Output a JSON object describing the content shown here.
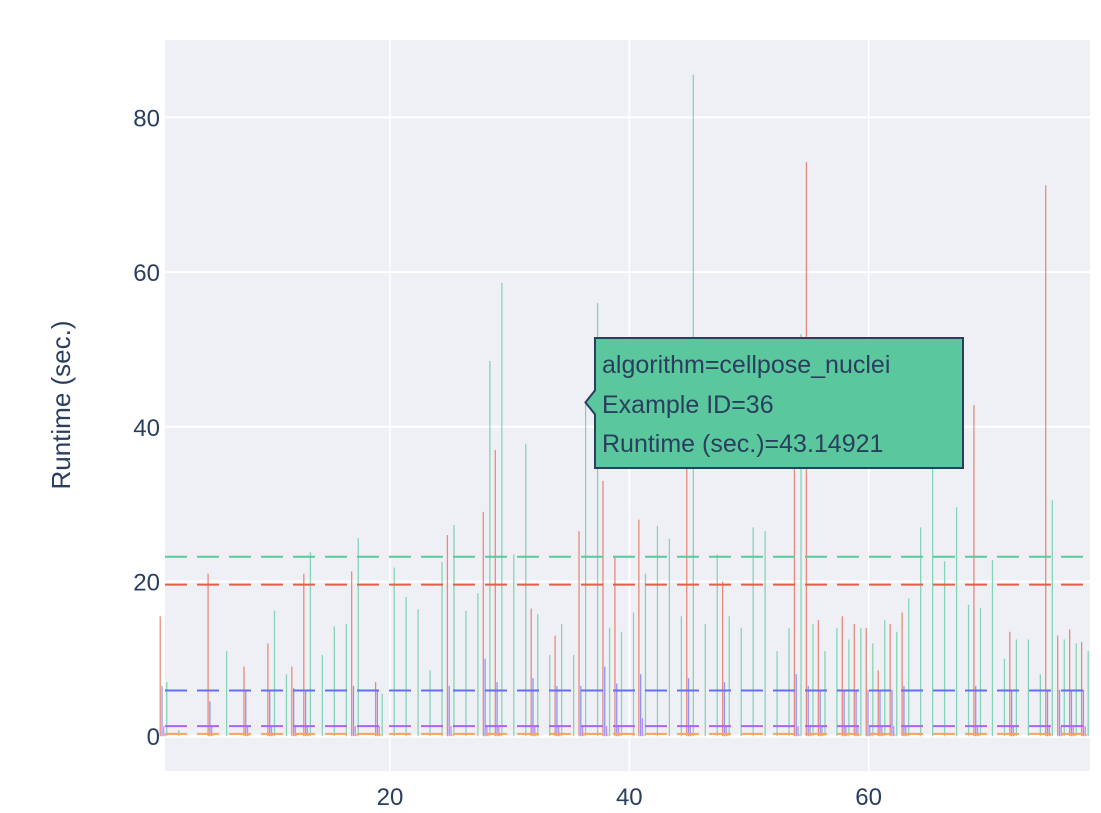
{
  "chart_data": {
    "type": "bar",
    "title": "",
    "xlabel": "",
    "ylabel": "Runtime (sec.)",
    "xlim": [
      1.2,
      78.5
    ],
    "ylim": [
      -4.5,
      90
    ],
    "x_ticks": [
      20,
      40,
      60
    ],
    "y_ticks": [
      0,
      20,
      40,
      60,
      80
    ],
    "grid": true,
    "legend": "none",
    "background": "#eff0f5",
    "series": [
      {
        "name": "cellpose_nuclei",
        "color": "#5ac79c",
        "mean": 23.2,
        "offset": 0.35,
        "values": [
          7,
          0.8,
          0,
          0,
          0,
          11,
          0,
          0,
          0,
          16.2,
          8,
          0,
          23.8,
          10.5,
          14.2,
          14.5,
          25.6,
          0,
          5.5,
          21.8,
          18,
          16.4,
          8.5,
          22.5,
          27.3,
          16.2,
          18.5,
          48.5,
          58.6,
          23.5,
          37.8,
          15.8,
          10.5,
          14.5,
          10.5,
          43.14921,
          56,
          14,
          13.5,
          16,
          21,
          27.2,
          25.5,
          15.5,
          85.5,
          14.5,
          23.5,
          15.5,
          14,
          27,
          26.5,
          11,
          14,
          52,
          14.5,
          11,
          14,
          12.5,
          14,
          12,
          15,
          13.5,
          17.8,
          27,
          36,
          22.6,
          29.6,
          17,
          16.6,
          22.8,
          10,
          12.5,
          12.5,
          8,
          30.5,
          12.5,
          12,
          11
        ]
      },
      {
        "name": "",
        "color": "#e1604a",
        "mean": 19.6,
        "offset": -0.2,
        "values": [
          15.5,
          0,
          0,
          0,
          21,
          0,
          0,
          9,
          0,
          12,
          0,
          9,
          21,
          0,
          0,
          0,
          21.3,
          0,
          7,
          0,
          0,
          0,
          0,
          0,
          26,
          0,
          0,
          29,
          37,
          0,
          0,
          16.5,
          0,
          13,
          0,
          26.5,
          0,
          33,
          23.3,
          0,
          28,
          0,
          0,
          0,
          38,
          0,
          0,
          20,
          0,
          0,
          0,
          0,
          0,
          38.5,
          74.2,
          15,
          0,
          15.5,
          14.5,
          14,
          8.5,
          14.5,
          16,
          0,
          0,
          0,
          0,
          0,
          42.8,
          0,
          0,
          13.5,
          0,
          0,
          71.2,
          13,
          13.8,
          12.2
        ]
      },
      {
        "name": "",
        "color": "#636efa",
        "mean": 5.9,
        "offset": -0.05,
        "values": [
          6.5,
          0,
          0,
          0,
          4.5,
          0,
          0,
          6,
          0,
          6,
          0,
          6.2,
          6,
          0,
          0,
          0,
          6.5,
          0,
          6,
          0,
          0,
          0,
          0,
          0,
          6.5,
          0,
          0,
          10,
          7,
          0,
          0,
          7.5,
          0,
          6.5,
          0,
          6.5,
          0,
          9,
          6.8,
          0,
          8,
          0,
          0,
          0,
          7.5,
          0,
          0,
          7,
          0,
          0,
          0,
          0,
          0,
          8,
          6.5,
          6,
          0,
          6,
          6,
          6,
          6,
          6,
          6.5,
          0,
          0,
          0,
          0,
          0,
          6.5,
          0,
          0,
          6,
          0,
          0,
          6,
          6,
          6,
          6
        ]
      },
      {
        "name": "",
        "color": "#ab63fa",
        "mean": 1.3,
        "offset": 0.1,
        "values": [
          1.3,
          0,
          0,
          0,
          1.3,
          0,
          0,
          1.3,
          0,
          1.3,
          0,
          1.3,
          1.3,
          0,
          0,
          0,
          1.3,
          0,
          1.3,
          0,
          0,
          0,
          0,
          0,
          1.3,
          0,
          0,
          1.3,
          1.3,
          0,
          0,
          1.3,
          0,
          1.3,
          0,
          1.3,
          0,
          1.3,
          1.3,
          0,
          2.3,
          0,
          0,
          0,
          1.3,
          0,
          0,
          1.3,
          0,
          0,
          0,
          0,
          0,
          1.3,
          1.3,
          1.3,
          0,
          1.3,
          1.3,
          1.3,
          1.3,
          1.3,
          1.3,
          0,
          0,
          0,
          0,
          0,
          1.3,
          0,
          0,
          1.3,
          0,
          0,
          1.3,
          1.3,
          1.3,
          1.3
        ]
      },
      {
        "name": "",
        "color": "#ffa15a",
        "mean": 0.3,
        "offset": 0.2,
        "values": [
          0.3,
          0,
          0,
          0,
          0.3,
          0,
          0,
          0.3,
          0,
          0.3,
          0,
          0.3,
          0.3,
          0,
          0,
          0,
          0.3,
          0,
          0.3,
          0,
          0,
          0,
          0,
          0,
          0.3,
          0,
          0,
          0.3,
          0.3,
          0,
          0,
          0.3,
          0,
          0.3,
          0,
          0.3,
          0,
          0.3,
          0.3,
          0,
          0.3,
          0,
          0,
          0,
          0.3,
          0,
          0,
          0.3,
          0,
          0,
          0,
          0,
          0,
          0.3,
          0.3,
          0.3,
          0,
          0.3,
          0.3,
          0.3,
          0.3,
          0.3,
          0.3,
          0,
          0,
          0,
          0,
          0,
          0.3,
          0,
          0,
          0.3,
          0,
          0,
          0.3,
          0.3,
          0.3,
          0.3
        ]
      }
    ],
    "x_start": 1,
    "tooltip": {
      "lines": [
        "algorithm=cellpose_nuclei",
        "Example ID=36",
        "Runtime (sec.)=43.14921"
      ],
      "x": 36,
      "y": 43.14921,
      "color": "#5ac79c"
    }
  }
}
